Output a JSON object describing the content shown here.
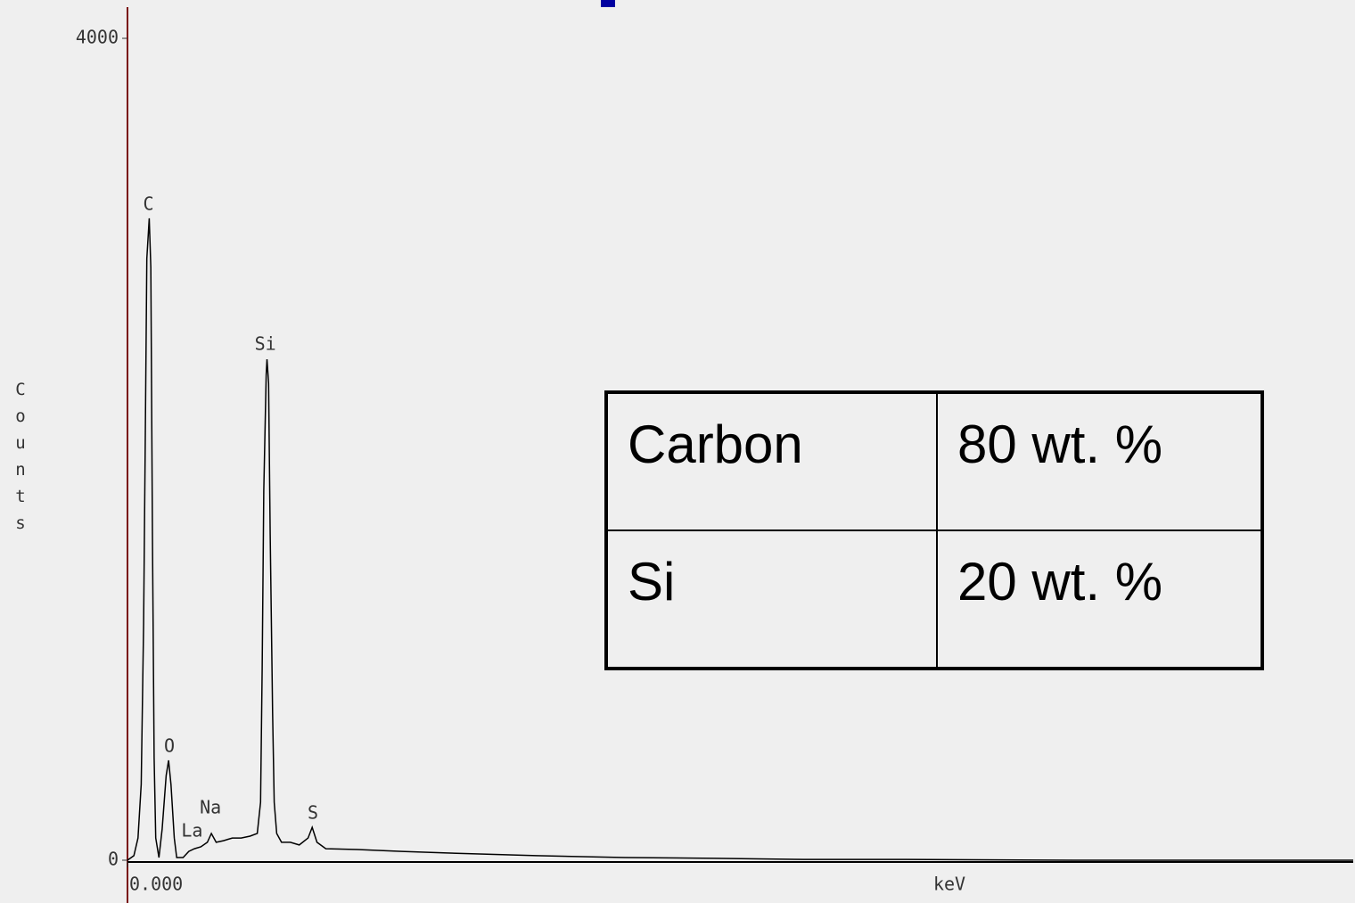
{
  "chart_data": {
    "type": "line",
    "xlabel": "keV",
    "ylabel": "Counts",
    "color": "#000000",
    "xlim": [
      0,
      15.2
    ],
    "xticks": [
      {
        "value": 0,
        "label": "0.000"
      }
    ],
    "ylim": [
      0,
      4000
    ],
    "yticks": [
      0,
      4000
    ],
    "x": [
      0,
      0.08,
      0.13,
      0.17,
      0.2,
      0.22,
      0.24,
      0.27,
      0.29,
      0.31,
      0.33,
      0.35,
      0.39,
      0.43,
      0.48,
      0.51,
      0.54,
      0.58,
      0.61,
      0.69,
      0.76,
      0.83,
      0.91,
      0.99,
      1.04,
      1.1,
      1.19,
      1.3,
      1.41,
      1.52,
      1.61,
      1.65,
      1.67,
      1.69,
      1.72,
      1.73,
      1.75,
      1.77,
      1.8,
      1.82,
      1.85,
      1.91,
      2.02,
      2.13,
      2.24,
      2.29,
      2.35,
      2.46,
      2.85,
      3.4,
      3.96,
      5.07,
      6.17,
      7.28,
      8.39,
      9.5,
      11.72,
      15.2
    ],
    "values": [
      0,
      22,
      108,
      369,
      1150,
      2017,
      2928,
      3124,
      2885,
      1584,
      499,
      108,
      13,
      152,
      412,
      486,
      369,
      108,
      13,
      13,
      43,
      56,
      65,
      87,
      130,
      87,
      95,
      108,
      108,
      117,
      130,
      282,
      933,
      1800,
      2364,
      2438,
      2321,
      1584,
      716,
      282,
      130,
      87,
      87,
      74,
      108,
      160,
      87,
      56,
      52,
      43,
      35,
      22,
      13,
      9,
      4,
      4,
      0,
      0
    ],
    "annotations": [
      {
        "text": "C",
        "x": 0.26,
        "y": 3189
      },
      {
        "text": "O",
        "x": 0.52,
        "y": 551
      },
      {
        "text": "Na",
        "x": 1.03,
        "y": 252
      },
      {
        "text": "La",
        "x": 0.8,
        "y": 139
      },
      {
        "text": "Si",
        "x": 1.71,
        "y": 2508
      },
      {
        "text": "S",
        "x": 2.3,
        "y": 226
      }
    ]
  },
  "table": {
    "rows": [
      [
        "Carbon",
        "80 wt. %"
      ],
      [
        "Si",
        "20 wt. %"
      ]
    ]
  }
}
